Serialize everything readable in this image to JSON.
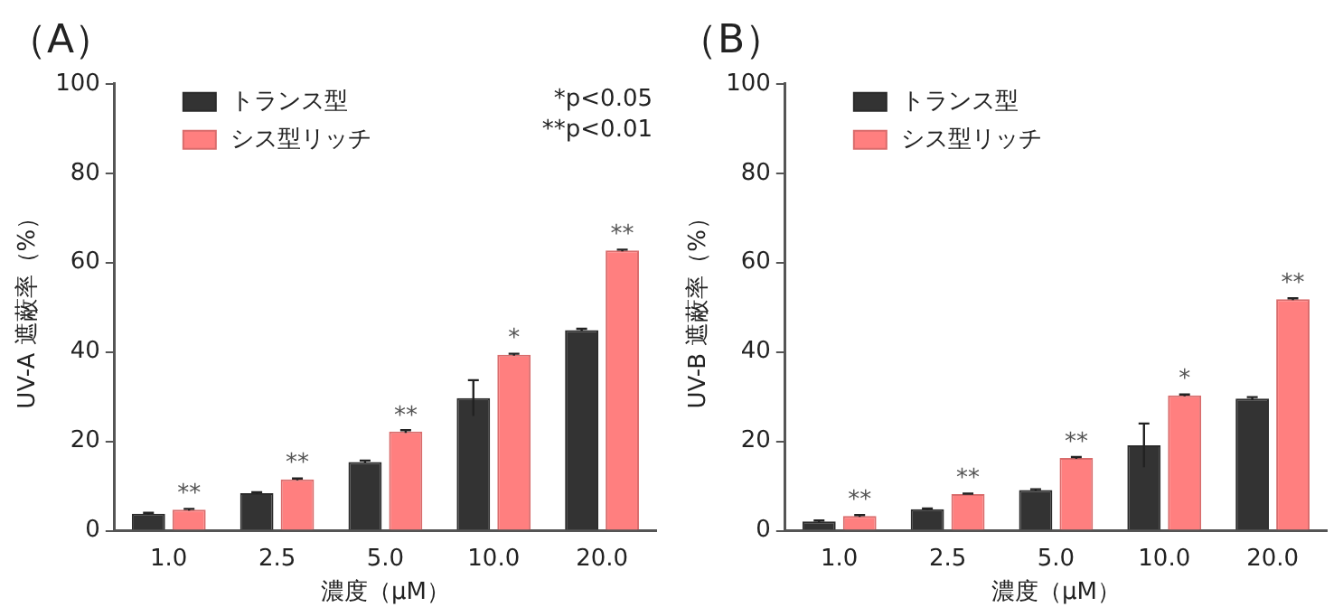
{
  "chart_data": [
    {
      "type": "bar",
      "title": "（A）",
      "xlabel": "濃度（μM）",
      "ylabel": "UV-A 遮蔽率（%）",
      "categories": [
        "1.0",
        "2.5",
        "5.0",
        "10.0",
        "20.0"
      ],
      "series": [
        {
          "name": "トランス型",
          "color": "#333333",
          "values": [
            3.8,
            8.4,
            15.4,
            29.7,
            44.9
          ],
          "errors": [
            0.2,
            0.2,
            0.3,
            4,
            0.3
          ]
        },
        {
          "name": "シス型リッチ",
          "color": "#ff7f7f",
          "values": [
            4.7,
            11.5,
            22.2,
            39.4,
            62.7
          ],
          "errors": [
            0.2,
            0.2,
            0.3,
            0.2,
            0.2
          ]
        }
      ],
      "ylim": [
        0,
        100
      ],
      "yticks": [
        0,
        20,
        40,
        60,
        80,
        100
      ],
      "grid": false,
      "legend": "top left",
      "annotations": [
        {
          "text": "**",
          "x": "1.0",
          "y": 4.7
        },
        {
          "text": "**",
          "x": "2.5",
          "y": 11.5
        },
        {
          "text": "**",
          "x": "5.0",
          "y": 22.2
        },
        {
          "text": "*",
          "x": "10.0",
          "y": 39.4
        },
        {
          "text": "**",
          "x": "20.0",
          "y": 62.7
        },
        "*p<0.05",
        "**p<0.01"
      ]
    },
    {
      "type": "bar",
      "title": "（B）",
      "xlabel": "濃度（μM）",
      "ylabel": "UV-B 遮蔽率（%）",
      "categories": [
        "1.0",
        "2.5",
        "5.0",
        "10.0",
        "20.0"
      ],
      "series": [
        {
          "name": "トランス型",
          "color": "#333333",
          "values": [
            2.1,
            4.8,
            9.1,
            19.1,
            29.6
          ],
          "errors": [
            0.2,
            0.2,
            0.2,
            4.9,
            0.3
          ]
        },
        {
          "name": "シス型リッチ",
          "color": "#ff7f7f",
          "values": [
            3.3,
            8.2,
            16.3,
            30.3,
            51.8
          ],
          "errors": [
            0.2,
            0.1,
            0.2,
            0.2,
            0.2
          ]
        }
      ],
      "ylim": [
        0,
        100
      ],
      "yticks": [
        0,
        20,
        40,
        60,
        80,
        100
      ],
      "grid": false,
      "legend": "top left",
      "annotations": [
        {
          "text": "**",
          "x": "1.0",
          "y": 3.3
        },
        {
          "text": "**",
          "x": "2.5",
          "y": 8.2
        },
        {
          "text": "**",
          "x": "5.0",
          "y": 16.3
        },
        {
          "text": "*",
          "x": "10.0",
          "y": 30.3
        },
        {
          "text": "**",
          "x": "20.0",
          "y": 51.8
        }
      ]
    }
  ]
}
